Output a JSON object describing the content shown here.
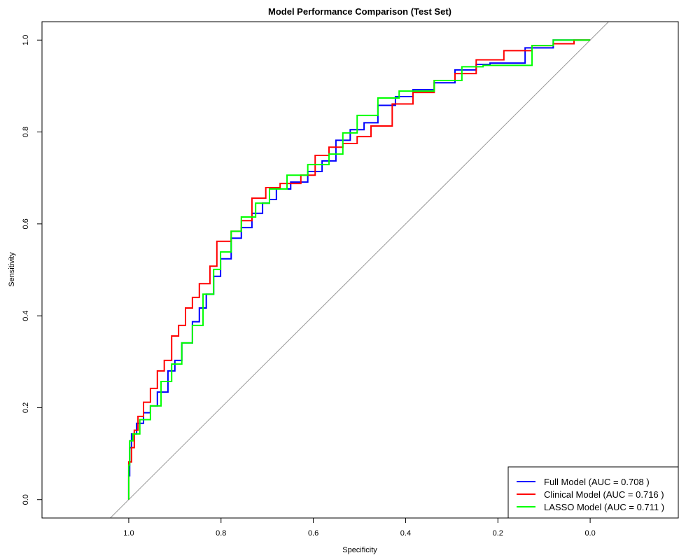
{
  "chart_data": {
    "type": "line",
    "title": "Model Performance Comparison (Test Set)",
    "xlabel": "Specificity",
    "ylabel": "Sensitivity",
    "xlim": [
      1.188,
      -0.191
    ],
    "ylim": [
      -0.04,
      1.04
    ],
    "x_ticks": [
      1.0,
      0.8,
      0.6,
      0.4,
      0.2,
      0.0
    ],
    "x_tick_labels": [
      "1.0",
      "0.8",
      "0.6",
      "0.4",
      "0.2",
      "0.0"
    ],
    "y_ticks": [
      0.0,
      0.2,
      0.4,
      0.6,
      0.8,
      1.0
    ],
    "y_tick_labels": [
      "0.0",
      "0.2",
      "0.4",
      "0.6",
      "0.8",
      "1.0"
    ],
    "grid": false,
    "legend_position": "bottom-right",
    "reference_line": {
      "type": "diagonal",
      "color": "#999999"
    },
    "series": [
      {
        "name": "Full Model (AUC = 0.708 )",
        "color": "#0000ff",
        "points": [
          [
            1,
            0
          ],
          [
            0.998,
            0.052
          ],
          [
            0.994,
            0.113
          ],
          [
            0.983,
            0.143
          ],
          [
            0.968,
            0.166
          ],
          [
            0.953,
            0.189
          ],
          [
            0.938,
            0.204
          ],
          [
            0.915,
            0.234
          ],
          [
            0.9,
            0.28
          ],
          [
            0.885,
            0.303
          ],
          [
            0.862,
            0.341
          ],
          [
            0.847,
            0.387
          ],
          [
            0.832,
            0.417
          ],
          [
            0.816,
            0.447
          ],
          [
            0.801,
            0.486
          ],
          [
            0.778,
            0.524
          ],
          [
            0.756,
            0.569
          ],
          [
            0.733,
            0.592
          ],
          [
            0.71,
            0.623
          ],
          [
            0.695,
            0.645
          ],
          [
            0.68,
            0.653
          ],
          [
            0.649,
            0.676
          ],
          [
            0.612,
            0.691
          ],
          [
            0.581,
            0.714
          ],
          [
            0.551,
            0.737
          ],
          [
            0.52,
            0.782
          ],
          [
            0.49,
            0.805
          ],
          [
            0.46,
            0.82
          ],
          [
            0.422,
            0.858
          ],
          [
            0.384,
            0.877
          ],
          [
            0.338,
            0.892
          ],
          [
            0.293,
            0.907
          ],
          [
            0.247,
            0.935
          ],
          [
            0.217,
            0.947
          ],
          [
            0.141,
            0.95
          ],
          [
            0.08,
            0.983
          ],
          [
            0,
            1
          ]
        ]
      },
      {
        "name": "Clinical Model (AUC = 0.716 )",
        "color": "#ff0000",
        "points": [
          [
            1,
            0
          ],
          [
            1,
            0.037
          ],
          [
            0.994,
            0.082
          ],
          [
            0.988,
            0.113
          ],
          [
            0.98,
            0.151
          ],
          [
            0.968,
            0.181
          ],
          [
            0.953,
            0.212
          ],
          [
            0.938,
            0.242
          ],
          [
            0.923,
            0.28
          ],
          [
            0.907,
            0.303
          ],
          [
            0.892,
            0.356
          ],
          [
            0.877,
            0.379
          ],
          [
            0.862,
            0.417
          ],
          [
            0.847,
            0.44
          ],
          [
            0.824,
            0.47
          ],
          [
            0.809,
            0.508
          ],
          [
            0.778,
            0.562
          ],
          [
            0.756,
            0.584
          ],
          [
            0.733,
            0.607
          ],
          [
            0.703,
            0.656
          ],
          [
            0.672,
            0.679
          ],
          [
            0.627,
            0.688
          ],
          [
            0.596,
            0.706
          ],
          [
            0.566,
            0.749
          ],
          [
            0.536,
            0.767
          ],
          [
            0.505,
            0.775
          ],
          [
            0.475,
            0.79
          ],
          [
            0.429,
            0.813
          ],
          [
            0.384,
            0.861
          ],
          [
            0.338,
            0.886
          ],
          [
            0.293,
            0.912
          ],
          [
            0.247,
            0.927
          ],
          [
            0.187,
            0.957
          ],
          [
            0.126,
            0.977
          ],
          [
            0.08,
            0.988
          ],
          [
            0.035,
            0.992
          ],
          [
            0,
            1
          ]
        ]
      },
      {
        "name": "LASSO Model (AUC = 0.711 )",
        "color": "#00ff00",
        "points": [
          [
            1,
            0
          ],
          [
            0.998,
            0.075
          ],
          [
            0.991,
            0.128
          ],
          [
            0.976,
            0.143
          ],
          [
            0.953,
            0.174
          ],
          [
            0.93,
            0.204
          ],
          [
            0.907,
            0.257
          ],
          [
            0.885,
            0.295
          ],
          [
            0.862,
            0.341
          ],
          [
            0.839,
            0.379
          ],
          [
            0.816,
            0.447
          ],
          [
            0.801,
            0.501
          ],
          [
            0.778,
            0.539
          ],
          [
            0.756,
            0.584
          ],
          [
            0.725,
            0.615
          ],
          [
            0.695,
            0.645
          ],
          [
            0.657,
            0.676
          ],
          [
            0.612,
            0.706
          ],
          [
            0.566,
            0.729
          ],
          [
            0.536,
            0.752
          ],
          [
            0.505,
            0.798
          ],
          [
            0.46,
            0.836
          ],
          [
            0.414,
            0.874
          ],
          [
            0.338,
            0.889
          ],
          [
            0.278,
            0.912
          ],
          [
            0.232,
            0.942
          ],
          [
            0.126,
            0.945
          ],
          [
            0.08,
            0.988
          ],
          [
            0,
            1
          ]
        ]
      }
    ]
  }
}
